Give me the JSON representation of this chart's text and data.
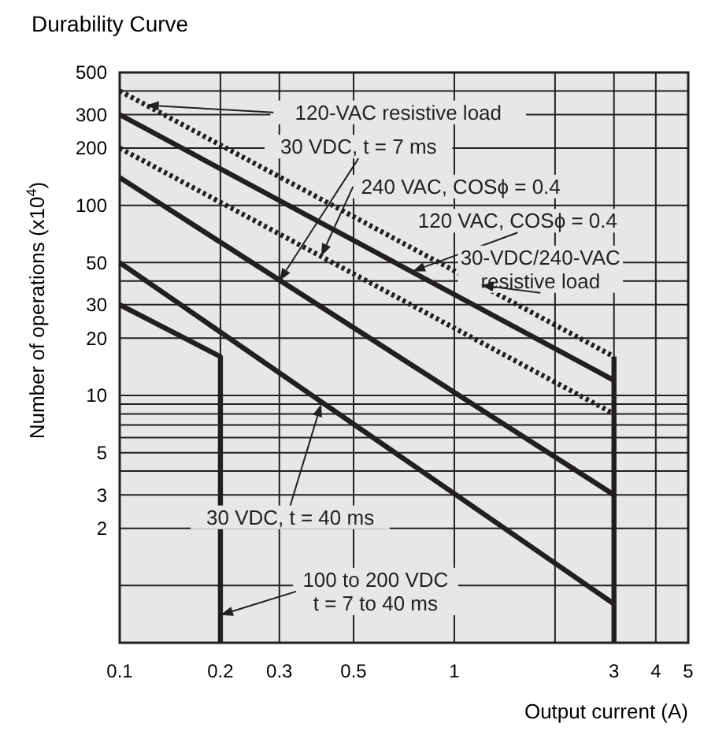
{
  "chart_data": {
    "type": "line",
    "title": "Durability Curve",
    "xlabel": "Output current (A)",
    "ylabel": "Number of operations (x10$^{4}$)",
    "log": "xy",
    "grid": true,
    "xlim": [
      0.1,
      5
    ],
    "ylim": [
      0.5,
      500
    ],
    "xticks": [
      0.1,
      0.2,
      0.3,
      0.5,
      1,
      {
        "value": 2,
        "label": null
      },
      3,
      4,
      5
    ],
    "yticks": [
      {
        "value": 1,
        "label": null
      },
      2,
      3,
      {
        "value": 4,
        "label": null
      },
      5,
      {
        "value": 6,
        "label": null
      },
      {
        "value": 7,
        "label": null
      },
      {
        "value": 8,
        "label": null
      },
      {
        "value": 9,
        "label": null
      },
      10,
      20,
      30,
      {
        "value": 40,
        "label": null
      },
      50,
      100,
      200,
      300,
      {
        "value": 400,
        "label": null
      },
      500
    ],
    "series": [
      {
        "color": "#231f20",
        "line_style": "dotted",
        "x": [
          0.1,
          3
        ],
        "values": [
          400,
          16
        ]
      },
      {
        "color": "#231f20",
        "line_style": "solid",
        "x": [
          0.1,
          3
        ],
        "values": [
          300,
          12
        ]
      },
      {
        "color": "#231f20",
        "line_style": "solid",
        "x": [
          3,
          3
        ],
        "values": [
          16,
          0.5
        ]
      },
      {
        "color": "#231f20",
        "line_style": "dotted",
        "x": [
          0.1,
          3
        ],
        "values": [
          200,
          8
        ]
      },
      {
        "color": "#231f20",
        "line_style": "solid",
        "x": [
          0.1,
          3
        ],
        "values": [
          140,
          3
        ]
      },
      {
        "color": "#231f20",
        "line_style": "solid",
        "x": [
          0.1,
          3
        ],
        "values": [
          50,
          0.8
        ]
      },
      {
        "color": "#231f20",
        "line_style": "solid",
        "x": [
          0.1,
          0.2,
          0.2
        ],
        "values": [
          30,
          16,
          0.5
        ]
      }
    ],
    "annotations": [
      {
        "text": "120-VAC resistive load",
        "x": 0.12,
        "y": 336
      },
      {
        "text": "30 VDC, t = 7 ms",
        "x": 0.3,
        "y": 40
      },
      {
        "text": "240 VAC, COSϕ = 0.4",
        "x": 0.4,
        "y": 54
      },
      {
        "text": "120 VAC, COSϕ = 0.4",
        "x": 0.75,
        "y": 45
      },
      {
        "text": "30-VDC/240-VAC\nresistive load",
        "x": 1.2,
        "y": 38
      },
      {
        "text": "30 VDC, t = 40 ms",
        "x": 0.4,
        "y": 9
      },
      {
        "text": "100 to 200 VDC\nt = 7 to 40 ms",
        "x": 0.2,
        "y": 0.7
      }
    ]
  }
}
